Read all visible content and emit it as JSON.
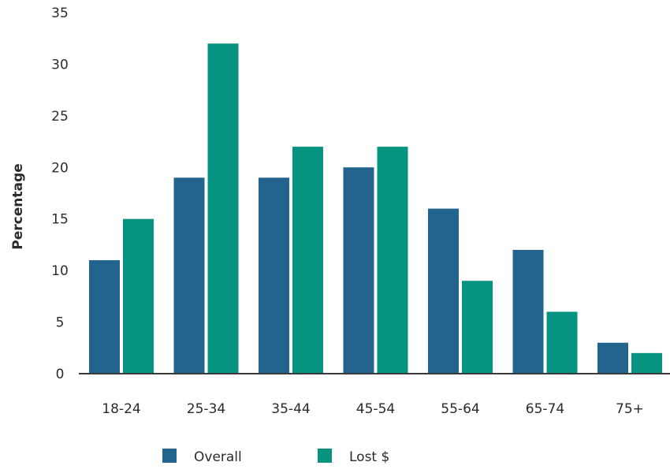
{
  "chart_data": {
    "type": "bar",
    "title": "",
    "xlabel": "",
    "ylabel": "Percentage",
    "ylim": [
      0,
      35
    ],
    "yticks": [
      0,
      5,
      10,
      15,
      20,
      25,
      30,
      35
    ],
    "categories": [
      "18-24",
      "25-34",
      "35-44",
      "45-54",
      "55-64",
      "65-74",
      "75+"
    ],
    "series": [
      {
        "name": "Overall",
        "color": "#23648f",
        "values": [
          11,
          19,
          19,
          20,
          16,
          12,
          3
        ]
      },
      {
        "name": "Lost $",
        "color": "#069480",
        "values": [
          15,
          32,
          22,
          22,
          9,
          6,
          2
        ]
      }
    ],
    "grid": false,
    "legend_position": "bottom"
  }
}
